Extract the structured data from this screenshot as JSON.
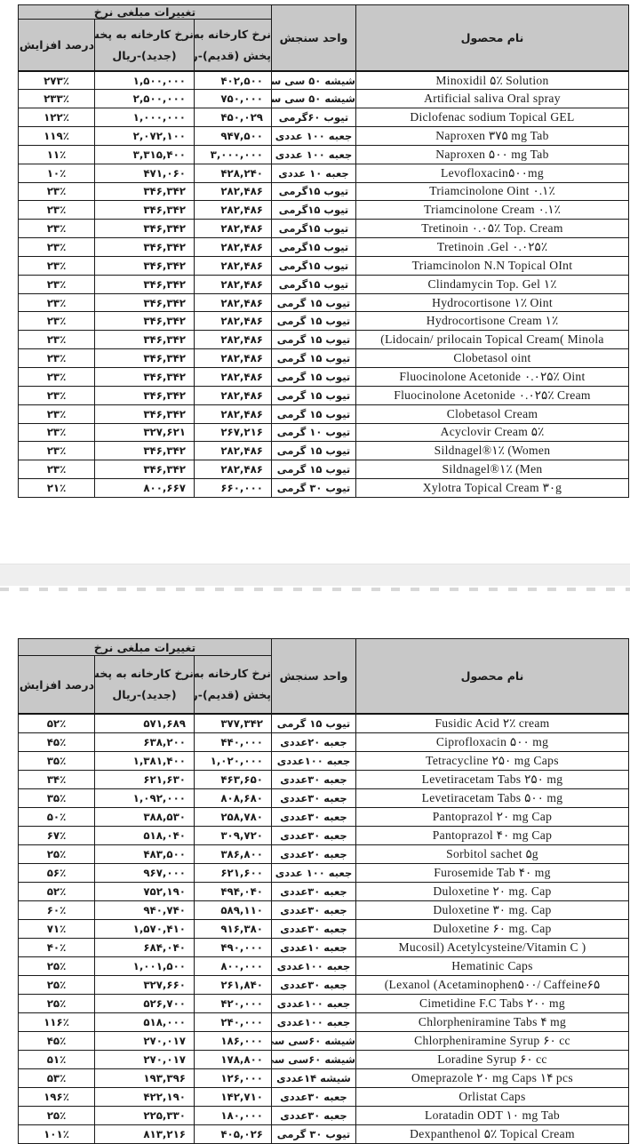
{
  "header": {
    "group": "تغییرات مبلغی نرخ",
    "percent": "درصد افزایش نرخ",
    "new1": "نرخ کارخانه به پخش",
    "new2": "(جدید)-ریال",
    "old1": "نرخ کارخانه به",
    "old2": "پخش (قدیم)-ریال",
    "unit": "واحد سنجش",
    "product": "نام محصول"
  },
  "table1": {
    "rows": [
      {
        "product": "Minoxidil ۵٪ Solution",
        "unit": "شیشه ۵۰ سی سی",
        "old": "۴۰۲,۵۰۰",
        "new": "۱,۵۰۰,۰۰۰",
        "pct": "۲۷۳٪"
      },
      {
        "product": "Artificial saliva Oral spray",
        "unit": "شیشه ۵۰ سی سی",
        "old": "۷۵۰,۰۰۰",
        "new": "۲,۵۰۰,۰۰۰",
        "pct": "۲۳۳٪"
      },
      {
        "product": "Diclofenac sodium Topical GEL",
        "unit": "تیوب ۶۰گرمی",
        "old": "۴۵۰,۰۲۹",
        "new": "۱,۰۰۰,۰۰۰",
        "pct": "۱۲۲٪"
      },
      {
        "product": "Naproxen ۳۷۵ mg Tab",
        "unit": "جعبه ۱۰۰ عددی",
        "old": "۹۴۷,۵۰۰",
        "new": "۲,۰۷۲,۱۰۰",
        "pct": "۱۱۹٪"
      },
      {
        "product": "Naproxen ۵۰۰ mg Tab",
        "unit": "جعبه ۱۰۰ عددی",
        "old": "۳,۰۰۰,۰۰۰",
        "new": "۳,۳۱۵,۴۰۰",
        "pct": "۱۱٪"
      },
      {
        "product": "Levofloxacin۵۰۰mg",
        "unit": "جعبه ۱۰ عددی",
        "old": "۴۲۸,۲۴۰",
        "new": "۴۷۱,۰۶۰",
        "pct": "۱۰٪"
      },
      {
        "product": "Triamcinolone Oint ۰.۱٪",
        "unit": "تیوب ۱۵گرمی",
        "old": "۲۸۲,۴۸۶",
        "new": "۳۴۶,۳۴۲",
        "pct": "۲۳٪"
      },
      {
        "product": "Triamcinolone Cream ۰.۱٪",
        "unit": "تیوب ۱۵گرمی",
        "old": "۲۸۲,۴۸۶",
        "new": "۳۴۶,۳۴۲",
        "pct": "۲۳٪"
      },
      {
        "product": "Tretinoin ۰.۰۵٪ Top. Cream",
        "unit": "تیوب ۱۵گرمی",
        "old": "۲۸۲,۴۸۶",
        "new": "۳۴۶,۳۴۲",
        "pct": "۲۳٪"
      },
      {
        "product": "Tretinoin .Gel ۰.۰۲۵٪",
        "unit": "تیوب ۱۵گرمی",
        "old": "۲۸۲,۴۸۶",
        "new": "۳۴۶,۳۴۲",
        "pct": "۲۳٪"
      },
      {
        "product": "Triamcinolon N.N Topical OInt",
        "unit": "تیوب ۱۵گرمی",
        "old": "۲۸۲,۴۸۶",
        "new": "۳۴۶,۳۴۲",
        "pct": "۲۳٪"
      },
      {
        "product": "Clindamycin Top. Gel ۱٪",
        "unit": "تیوب ۱۵گرمی",
        "old": "۲۸۲,۴۸۶",
        "new": "۳۴۶,۳۴۲",
        "pct": "۲۳٪"
      },
      {
        "product": "Hydrocortisone ۱٪ Oint",
        "unit": "تیوب ۱۵ گرمی",
        "old": "۲۸۲,۴۸۶",
        "new": "۳۴۶,۳۴۲",
        "pct": "۲۳٪"
      },
      {
        "product": "Hydrocortisone Cream ۱٪",
        "unit": "تیوب ۱۵ گرمی",
        "old": "۲۸۲,۴۸۶",
        "new": "۳۴۶,۳۴۲",
        "pct": "۲۳٪"
      },
      {
        "product": "(Lidocain/ prilocain Topical Cream( Minola",
        "unit": "تیوب ۱۵ گرمی",
        "old": "۲۸۲,۴۸۶",
        "new": "۳۴۶,۳۴۲",
        "pct": "۲۳٪"
      },
      {
        "product": "Clobetasol oint",
        "unit": "تیوب ۱۵ گرمی",
        "old": "۲۸۲,۴۸۶",
        "new": "۳۴۶,۳۴۲",
        "pct": "۲۳٪"
      },
      {
        "product": "Fluocinolone Acetonide ۰.۰۲۵٪ Oint",
        "unit": "تیوب ۱۵ گرمی",
        "old": "۲۸۲,۴۸۶",
        "new": "۳۴۶,۳۴۲",
        "pct": "۲۳٪"
      },
      {
        "product": "Fluocinolone Acetonide ۰.۰۲۵٪ Cream",
        "unit": "تیوب ۱۵ گرمی",
        "old": "۲۸۲,۴۸۶",
        "new": "۳۴۶,۳۴۲",
        "pct": "۲۳٪"
      },
      {
        "product": "Clobetasol Cream",
        "unit": "تیوب ۱۵ گرمی",
        "old": "۲۸۲,۴۸۶",
        "new": "۳۴۶,۳۴۲",
        "pct": "۲۳٪"
      },
      {
        "product": "Acyclovir Cream ۵٪",
        "unit": "تیوب ۱۰ گرمی",
        "old": "۲۶۷,۲۱۶",
        "new": "۳۲۷,۶۲۱",
        "pct": "۲۳٪"
      },
      {
        "product": "Sildnagel®۱٪ (Women",
        "unit": "تیوب ۱۵ گرمی",
        "old": "۲۸۲,۴۸۶",
        "new": "۳۴۶,۳۴۲",
        "pct": "۲۳٪"
      },
      {
        "product": "Sildnagel®۱٪ (Men",
        "unit": "تیوب ۱۵ گرمی",
        "old": "۲۸۲,۴۸۶",
        "new": "۳۴۶,۳۴۲",
        "pct": "۲۳٪"
      },
      {
        "product": "Xylotra Topical Cream ۳۰g",
        "unit": "تیوب ۳۰ گرمی",
        "old": "۶۶۰,۰۰۰",
        "new": "۸۰۰,۶۶۷",
        "pct": "۲۱٪"
      }
    ]
  },
  "table2": {
    "rows": [
      {
        "product": "Fusidic Acid ۲٪ cream",
        "unit": "تیوب ۱۵ گرمی",
        "old": "۳۷۷,۳۴۲",
        "new": "۵۷۱,۶۸۹",
        "pct": "۵۲٪"
      },
      {
        "product": "Ciprofloxacin ۵۰۰ mg",
        "unit": "جعبه ۲۰عددی",
        "old": "۴۴۰,۰۰۰",
        "new": "۶۳۸,۲۰۰",
        "pct": "۴۵٪"
      },
      {
        "product": "Tetracycline ۲۵۰ mg Caps",
        "unit": "جعبه ۱۰۰عددی",
        "old": "۱,۰۲۰,۰۰۰",
        "new": "۱,۳۸۱,۴۰۰",
        "pct": "۳۵٪"
      },
      {
        "product": "Levetiracetam Tabs ۲۵۰ mg",
        "unit": "جعبه ۳۰عددی",
        "old": "۴۶۳,۶۵۰",
        "new": "۶۲۱,۶۳۰",
        "pct": "۳۴٪"
      },
      {
        "product": "Levetiracetam Tabs ۵۰۰ mg",
        "unit": "جعبه ۳۰عددی",
        "old": "۸۰۸,۶۸۰",
        "new": "۱,۰۹۲,۰۰۰",
        "pct": "۳۵٪"
      },
      {
        "product": "Pantoprazol ۲۰ mg Cap",
        "unit": "جعبه ۳۰عددی",
        "old": "۲۵۸,۷۸۰",
        "new": "۳۸۸,۵۳۰",
        "pct": "۵۰٪"
      },
      {
        "product": "Pantoprazol ۴۰ mg Cap",
        "unit": "جعبه ۳۰عددی",
        "old": "۳۰۹,۷۲۰",
        "new": "۵۱۸,۰۴۰",
        "pct": "۶۷٪"
      },
      {
        "product": "Sorbitol sachet ۵g",
        "unit": "جعبه ۲۰عددی",
        "old": "۳۸۶,۸۰۰",
        "new": "۴۸۳,۵۰۰",
        "pct": "۲۵٪"
      },
      {
        "product": "Furosemide Tab ۴۰ mg",
        "unit": "جعبه ۱۰۰ عددی",
        "old": "۶۲۱,۶۰۰",
        "new": "۹۶۷,۰۰۰",
        "pct": "۵۶٪"
      },
      {
        "product": "Duloxetine ۲۰ mg. Cap",
        "unit": "جعبه ۳۰عددی",
        "old": "۴۹۴,۰۴۰",
        "new": "۷۵۲,۱۹۰",
        "pct": "۵۲٪"
      },
      {
        "product": "Duloxetine ۳۰ mg. Cap",
        "unit": "جعبه ۳۰عددی",
        "old": "۵۸۹,۱۱۰",
        "new": "۹۴۰,۷۴۰",
        "pct": "۶۰٪"
      },
      {
        "product": "Duloxetine ۶۰ mg. Cap",
        "unit": "جعبه ۳۰عددی",
        "old": "۹۱۶,۳۸۰",
        "new": "۱,۵۷۰,۴۱۰",
        "pct": "۷۱٪"
      },
      {
        "product": "Mucosil) Acetylcysteine/Vitamin C )",
        "unit": "جعبه ۱۰عددی",
        "old": "۴۹۰,۰۰۰",
        "new": "۶۸۴,۰۴۰",
        "pct": "۴۰٪"
      },
      {
        "product": "Hematinic Caps",
        "unit": "جعبه ۱۰۰عددی",
        "old": "۸۰۰,۰۰۰",
        "new": "۱,۰۰۱,۵۰۰",
        "pct": "۲۵٪"
      },
      {
        "product": "(Lexanol (Acetaminophen۵۰۰/ Caffeine۶۵",
        "unit": "جعبه ۳۰عددی",
        "old": "۲۶۱,۸۴۰",
        "new": "۳۲۷,۶۶۰",
        "pct": "۲۵٪"
      },
      {
        "product": "Cimetidine F.C Tabs ۲۰۰ mg",
        "unit": "جعبه ۱۰۰عددی",
        "old": "۴۲۰,۰۰۰",
        "new": "۵۲۶,۷۰۰",
        "pct": "۲۵٪"
      },
      {
        "product": "Chlorpheniramine Tabs ۴ mg",
        "unit": "جعبه ۱۰۰عددی",
        "old": "۲۴۰,۰۰۰",
        "new": "۵۱۸,۰۰۰",
        "pct": "۱۱۶٪"
      },
      {
        "product": "Chlorpheniramine Syrup ۶۰ cc",
        "unit": "شیشه ۶۰سی سی",
        "old": "۱۸۶,۰۰۰",
        "new": "۲۷۰,۰۱۷",
        "pct": "۴۵٪"
      },
      {
        "product": "Loradine Syrup ۶۰ cc",
        "unit": "شیشه ۶۰سی سی",
        "old": "۱۷۸,۸۰۰",
        "new": "۲۷۰,۰۱۷",
        "pct": "۵۱٪"
      },
      {
        "product": "Omeprazole ۲۰ mg Caps ۱۴ pcs",
        "unit": "شیشه ۱۴عددی",
        "old": "۱۲۶,۰۰۰",
        "new": "۱۹۳,۳۹۶",
        "pct": "۵۳٪"
      },
      {
        "product": "Orlistat Caps",
        "unit": "جعبه ۳۰عددی",
        "old": "۱۴۲,۷۱۰",
        "new": "۴۲۲,۱۹۰",
        "pct": "۱۹۶٪"
      },
      {
        "product": "Loratadin ODT ۱۰ mg Tab",
        "unit": "جعبه ۳۰عددی",
        "old": "۱۸۰,۰۰۰",
        "new": "۲۲۵,۳۳۰",
        "pct": "۲۵٪"
      },
      {
        "product": "Dexpanthenol ۵٪ Topical Cream",
        "unit": "تیوب ۳۰ گرمی",
        "old": "۴۰۵,۰۲۶",
        "new": "۸۱۳,۲۱۶",
        "pct": "۱۰۱٪"
      }
    ]
  }
}
